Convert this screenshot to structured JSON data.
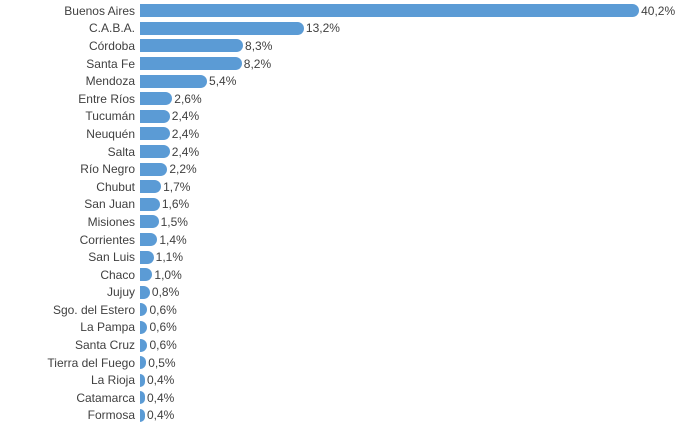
{
  "chart_data": {
    "type": "bar",
    "orientation": "horizontal",
    "title": "",
    "xlabel": "",
    "ylabel": "",
    "grid": false,
    "legend": false,
    "xlim": [
      0,
      44.7
    ],
    "bar_color": "#5B9BD5",
    "text_color": "#404040",
    "categories": [
      "Buenos Aires",
      "C.A.B.A.",
      "Córdoba",
      "Santa Fe",
      "Mendoza",
      "Entre Ríos",
      "Tucumán",
      "Neuquén",
      "Salta",
      "Río Negro",
      "Chubut",
      "San Juan",
      "Misiones",
      "Corrientes",
      "San Luis",
      "Chaco",
      "Jujuy",
      "Sgo. del Estero",
      "La Pampa",
      "Santa Cruz",
      "Tierra del Fuego",
      "La Rioja",
      "Catamarca",
      "Formosa"
    ],
    "values": [
      40.2,
      13.2,
      8.3,
      8.2,
      5.4,
      2.6,
      2.4,
      2.4,
      2.4,
      2.2,
      1.7,
      1.6,
      1.5,
      1.4,
      1.1,
      1.0,
      0.8,
      0.6,
      0.6,
      0.6,
      0.5,
      0.4,
      0.4,
      0.4
    ],
    "value_labels": [
      "40,2%",
      "13,2%",
      "8,3%",
      "8,2%",
      "5,4%",
      "2,6%",
      "2,4%",
      "2,4%",
      "2,4%",
      "2,2%",
      "1,7%",
      "1,6%",
      "1,5%",
      "1,4%",
      "1,1%",
      "1,0%",
      "0,8%",
      "0,6%",
      "0,6%",
      "0,6%",
      "0,5%",
      "0,4%",
      "0,4%",
      "0,4%"
    ]
  }
}
